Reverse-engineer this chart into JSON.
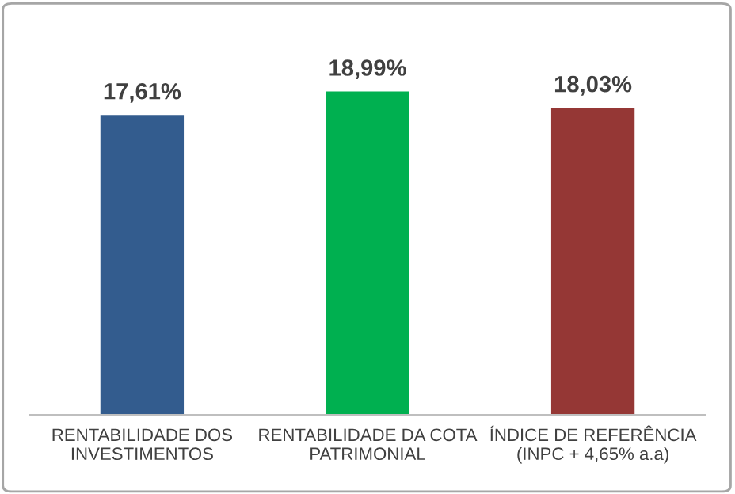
{
  "chart_data": {
    "type": "bar",
    "categories": [
      "RENTABILIDADE DOS\nINVESTIMENTOS",
      "RENTABILIDADE DA COTA\nPATRIMONIAL",
      "ÍNDICE DE REFERÊNCIA\n(INPC + 4,65% a.a)"
    ],
    "values": [
      17.61,
      18.99,
      18.03
    ],
    "colors": [
      "#335c8e",
      "#00b050",
      "#953735"
    ],
    "value_labels": [
      "17,61%",
      "18,99%",
      "18,03%"
    ]
  }
}
